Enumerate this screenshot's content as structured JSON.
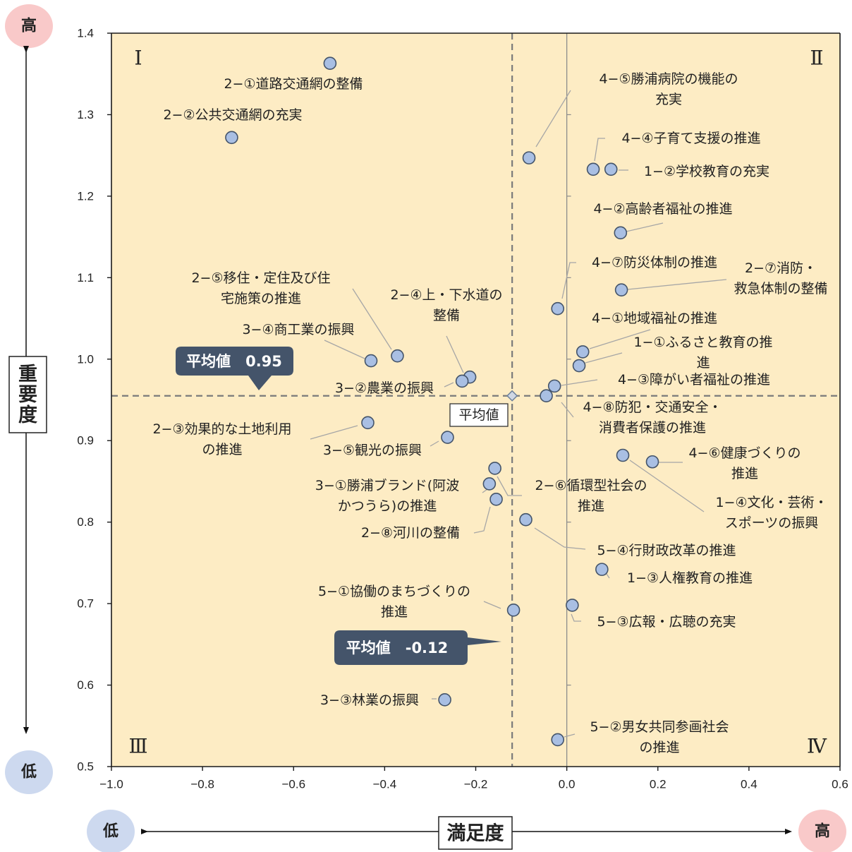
{
  "chart_data": {
    "type": "scatter",
    "xlim": [
      -1.0,
      0.6
    ],
    "ylim": [
      0.5,
      1.4
    ],
    "x_ticks": [
      "−1.0",
      "−0.8",
      "−0.6",
      "−0.4",
      "−0.2",
      "0.0",
      "0.2",
      "0.4",
      "0.6"
    ],
    "y_ticks": [
      "0.5",
      "0.6",
      "0.7",
      "0.8",
      "0.9",
      "1.0",
      "1.1",
      "1.2",
      "1.3",
      "1.4"
    ],
    "xlabel": "満足度",
    "ylabel": "重要度",
    "quadrants": [
      "Ⅰ",
      "Ⅱ",
      "Ⅲ",
      "Ⅳ"
    ],
    "high_label": "高",
    "low_label": "低",
    "average_x": -0.12,
    "average_y": 0.955,
    "average_label": "平均値",
    "average_x_callout": "平均値　-0.12",
    "average_y_callout": "平均値　0.95",
    "colors": {
      "plot_bg": "#fdecc4",
      "marker_fill": "#a9bfe3",
      "marker_stroke": "#44546a",
      "callout": "#44546a",
      "high": "#f9c9c9",
      "low": "#cdd9ef"
    },
    "points": [
      {
        "name": "2−①道路交通網の整備",
        "x": -0.52,
        "y": 1.363
      },
      {
        "name": "2−②公共交通網の充実",
        "x": -0.736,
        "y": 1.272
      },
      {
        "name": "4−⑤勝浦病院の機能の充実",
        "lines": [
          "4−⑤勝浦病院の機能の",
          "充実"
        ],
        "x": -0.083,
        "y": 1.247
      },
      {
        "name": "4−④子育て支援の推進",
        "x": 0.058,
        "y": 1.233
      },
      {
        "name": "1−②学校教育の充実",
        "x": 0.097,
        "y": 1.233
      },
      {
        "name": "4−②高齢者福祉の推進",
        "x": 0.118,
        "y": 1.155
      },
      {
        "name": "4−⑦防災体制の推進",
        "x": -0.02,
        "y": 1.062
      },
      {
        "name": "2−⑦消防・救急体制の整備",
        "lines": [
          "2−⑦消防・",
          "救急体制の整備"
        ],
        "x": 0.12,
        "y": 1.085
      },
      {
        "name": "2−⑤移住・定住及び住宅施策の推進",
        "lines": [
          "2−⑤移住・定住及び住",
          "宅施策の推進"
        ],
        "x": -0.372,
        "y": 1.004
      },
      {
        "name": "2−④上・下水道の整備",
        "lines": [
          "2−④上・下水道の",
          "整備"
        ],
        "x": -0.213,
        "y": 0.978
      },
      {
        "name": "3−④商工業の振興",
        "x": -0.43,
        "y": 0.998
      },
      {
        "name": "3−②農業の振興",
        "x": -0.23,
        "y": 0.973
      },
      {
        "name": "4−①地域福祉の推進",
        "x": 0.035,
        "y": 1.009
      },
      {
        "name": "1−①ふるさと教育の推進",
        "lines": [
          "1−①ふるさと教育の推",
          "進"
        ],
        "x": 0.027,
        "y": 0.992
      },
      {
        "name": "4−③障がい者福祉の推進",
        "x": -0.027,
        "y": 0.967
      },
      {
        "name": "4−⑧防犯・交通安全・消費者保護の推進",
        "lines": [
          "4−⑧防犯・交通安全・",
          "消費者保護の推進"
        ],
        "x": -0.045,
        "y": 0.955
      },
      {
        "name": "2−③効果的な土地利用の推進",
        "lines": [
          "2−③効果的な土地利用",
          "の推進"
        ],
        "x": -0.437,
        "y": 0.922
      },
      {
        "name": "3−⑤観光の振興",
        "x": -0.262,
        "y": 0.904
      },
      {
        "name": "4−⑥健康づくりの推進",
        "lines": [
          "4−⑥健康づくりの",
          "推進"
        ],
        "x": 0.188,
        "y": 0.874
      },
      {
        "name": "1−④文化・芸術・スポーツの振興",
        "lines": [
          "1−④文化・芸術・",
          "スポーツの振興"
        ],
        "x": 0.123,
        "y": 0.882
      },
      {
        "name": "2−⑥循環型社会の推進",
        "lines": [
          "2−⑥循環型社会の",
          "推進"
        ],
        "x": -0.158,
        "y": 0.866
      },
      {
        "name": "3−①勝浦ブランド(阿波かつうら)の推進",
        "lines": [
          "3−①勝浦ブランド(阿波",
          "かつうら)の推進"
        ],
        "x": -0.17,
        "y": 0.847
      },
      {
        "name": "2−⑧河川の整備",
        "x": -0.155,
        "y": 0.828
      },
      {
        "name": "5−④行財政改革の推進",
        "x": -0.09,
        "y": 0.803
      },
      {
        "name": "1−③人権教育の推進",
        "x": 0.077,
        "y": 0.742
      },
      {
        "name": "5−①協働のまちづくりの推進",
        "lines": [
          "5−①協働のまちづくりの",
          "推進"
        ],
        "x": -0.117,
        "y": 0.692
      },
      {
        "name": "5−③広報・広聴の充実",
        "x": 0.012,
        "y": 0.698
      },
      {
        "name": "3−③林業の振興",
        "x": -0.268,
        "y": 0.582
      },
      {
        "name": "5−②男女共同参画社会の推進",
        "lines": [
          "5−②男女共同参画社会",
          "の推進"
        ],
        "x": -0.02,
        "y": 0.533
      }
    ]
  }
}
